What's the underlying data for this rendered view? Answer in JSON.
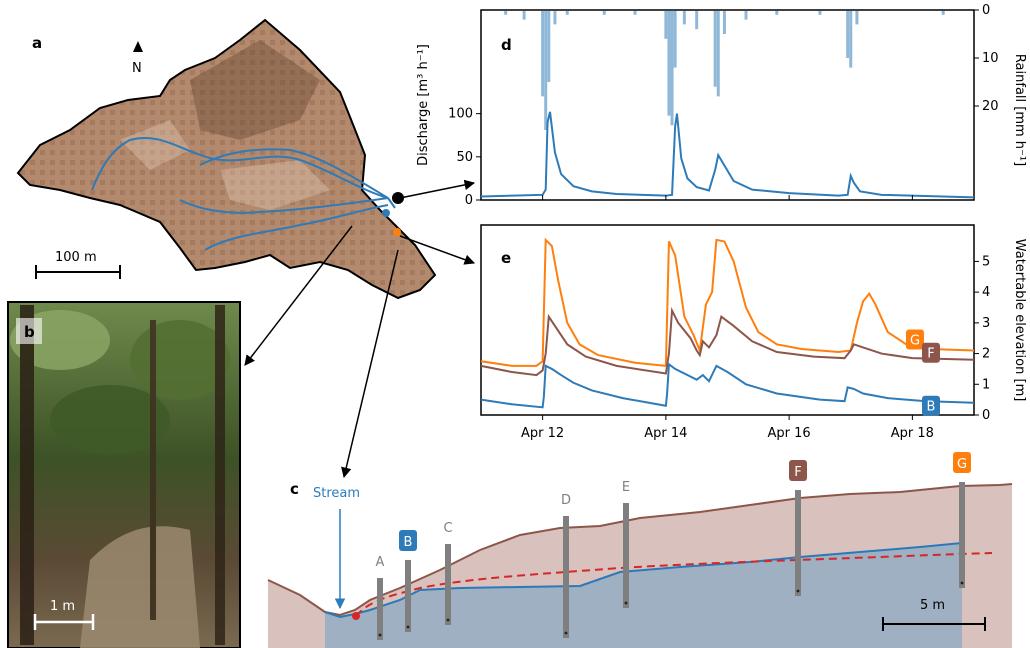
{
  "panels": {
    "a": "a",
    "b": "b",
    "c": "c",
    "d": "d",
    "e": "e"
  },
  "map": {
    "north_label": "N",
    "scale_label": "100 m",
    "colors": {
      "terrain": "#b48a6e",
      "stream": "#2e7bb8",
      "outline": "#000000"
    }
  },
  "photo": {
    "scale_label": "1 m"
  },
  "cross_section": {
    "stream_label": "Stream",
    "scale_label": "5 m",
    "well_labels": [
      "A",
      "B",
      "C",
      "D",
      "E",
      "F",
      "G"
    ],
    "colors": {
      "soil": "#d9c2bd",
      "water": "#9fb0c2",
      "water_line": "#2a79b8",
      "dashed": "#d62728",
      "surface": "#8c564b",
      "well": "#7f7f7f"
    }
  },
  "chart_data": [
    {
      "type": "line",
      "id": "d",
      "ylabel": "Discharge  [m³ h⁻¹]",
      "y2label": "Rainfall  [mm h⁻¹]",
      "xlim": [
        11.0,
        19.0
      ],
      "ylim": [
        0,
        220
      ],
      "y_ticks": [
        0,
        50,
        100
      ],
      "y2_ticks": [
        0,
        10,
        20
      ],
      "y2lim_reversed": [
        0,
        25
      ],
      "series": [
        {
          "color": "#2e7bb8",
          "points": [
            [
              11.0,
              4
            ],
            [
              12.0,
              6
            ],
            [
              12.05,
              12
            ],
            [
              12.08,
              90
            ],
            [
              12.12,
              102
            ],
            [
              12.2,
              55
            ],
            [
              12.3,
              30
            ],
            [
              12.5,
              16
            ],
            [
              12.8,
              10
            ],
            [
              13.2,
              7
            ],
            [
              14.0,
              5
            ],
            [
              14.1,
              6
            ],
            [
              14.15,
              85
            ],
            [
              14.18,
              100
            ],
            [
              14.25,
              48
            ],
            [
              14.35,
              25
            ],
            [
              14.5,
              15
            ],
            [
              14.7,
              11
            ],
            [
              14.8,
              35
            ],
            [
              14.85,
              52
            ],
            [
              14.95,
              40
            ],
            [
              15.1,
              22
            ],
            [
              15.4,
              12
            ],
            [
              16.0,
              8
            ],
            [
              16.8,
              5
            ],
            [
              16.95,
              6
            ],
            [
              17.0,
              28
            ],
            [
              17.05,
              20
            ],
            [
              17.15,
              10
            ],
            [
              17.5,
              6
            ],
            [
              19.0,
              3
            ]
          ]
        },
        {
          "color": "#8fb8d8",
          "name_hidden": "rainfall",
          "points": [
            [
              11.4,
              1
            ],
            [
              11.7,
              2
            ],
            [
              12.0,
              18
            ],
            [
              12.05,
              25
            ],
            [
              12.1,
              15
            ],
            [
              12.2,
              3
            ],
            [
              12.4,
              1
            ],
            [
              13.0,
              1
            ],
            [
              13.5,
              1
            ],
            [
              14.0,
              6
            ],
            [
              14.05,
              22
            ],
            [
              14.1,
              24
            ],
            [
              14.15,
              12
            ],
            [
              14.3,
              3
            ],
            [
              14.5,
              4
            ],
            [
              14.8,
              16
            ],
            [
              14.85,
              18
            ],
            [
              14.95,
              5
            ],
            [
              15.3,
              2
            ],
            [
              15.8,
              1
            ],
            [
              16.5,
              1
            ],
            [
              16.95,
              10
            ],
            [
              17.0,
              12
            ],
            [
              17.1,
              3
            ],
            [
              18.5,
              1
            ]
          ]
        }
      ]
    },
    {
      "type": "line",
      "id": "e",
      "ylabel": "Watertable elevation  [m]",
      "x_tick_labels": [
        "Apr 12",
        "Apr 14",
        "Apr 16",
        "Apr 18"
      ],
      "x_ticks": [
        12,
        14,
        16,
        18
      ],
      "xlim": [
        11.0,
        19.0
      ],
      "ylim": [
        0,
        6
      ],
      "y_ticks": [
        0,
        1,
        2,
        3,
        4,
        5
      ],
      "series": [
        {
          "name": "G",
          "color": "#ff7f0e",
          "points": [
            [
              11.0,
              1.75
            ],
            [
              11.5,
              1.6
            ],
            [
              11.9,
              1.6
            ],
            [
              12.0,
              1.75
            ],
            [
              12.05,
              5.7
            ],
            [
              12.15,
              5.5
            ],
            [
              12.25,
              4.4
            ],
            [
              12.4,
              3.0
            ],
            [
              12.6,
              2.3
            ],
            [
              12.9,
              1.95
            ],
            [
              13.5,
              1.7
            ],
            [
              14.0,
              1.6
            ],
            [
              14.05,
              5.65
            ],
            [
              14.15,
              5.2
            ],
            [
              14.3,
              3.2
            ],
            [
              14.45,
              2.6
            ],
            [
              14.55,
              2.1
            ],
            [
              14.65,
              3.6
            ],
            [
              14.75,
              4.0
            ],
            [
              14.82,
              5.7
            ],
            [
              14.95,
              5.65
            ],
            [
              15.1,
              5.0
            ],
            [
              15.3,
              3.5
            ],
            [
              15.5,
              2.7
            ],
            [
              15.8,
              2.3
            ],
            [
              16.2,
              2.15
            ],
            [
              16.8,
              2.05
            ],
            [
              17.0,
              2.1
            ],
            [
              17.1,
              3.0
            ],
            [
              17.2,
              3.7
            ],
            [
              17.3,
              3.95
            ],
            [
              17.4,
              3.6
            ],
            [
              17.6,
              2.7
            ],
            [
              17.9,
              2.3
            ],
            [
              18.3,
              2.15
            ],
            [
              19.0,
              2.1
            ]
          ]
        },
        {
          "name": "F",
          "color": "#8c564b",
          "points": [
            [
              11.0,
              1.6
            ],
            [
              11.5,
              1.4
            ],
            [
              11.9,
              1.3
            ],
            [
              12.0,
              1.45
            ],
            [
              12.05,
              2.0
            ],
            [
              12.1,
              3.2
            ],
            [
              12.2,
              2.9
            ],
            [
              12.4,
              2.3
            ],
            [
              12.7,
              1.9
            ],
            [
              13.2,
              1.6
            ],
            [
              14.0,
              1.35
            ],
            [
              14.05,
              2.0
            ],
            [
              14.1,
              3.4
            ],
            [
              14.2,
              3.0
            ],
            [
              14.4,
              2.5
            ],
            [
              14.5,
              2.1
            ],
            [
              14.55,
              1.95
            ],
            [
              14.6,
              2.4
            ],
            [
              14.7,
              2.2
            ],
            [
              14.82,
              2.6
            ],
            [
              14.9,
              3.2
            ],
            [
              15.1,
              2.9
            ],
            [
              15.4,
              2.4
            ],
            [
              15.8,
              2.05
            ],
            [
              16.4,
              1.9
            ],
            [
              16.9,
              1.85
            ],
            [
              17.0,
              2.1
            ],
            [
              17.05,
              2.3
            ],
            [
              17.2,
              2.2
            ],
            [
              17.5,
              2.0
            ],
            [
              18.0,
              1.85
            ],
            [
              19.0,
              1.8
            ]
          ]
        },
        {
          "name": "B",
          "color": "#2e7bb8",
          "points": [
            [
              11.0,
              0.5
            ],
            [
              11.5,
              0.35
            ],
            [
              12.0,
              0.25
            ],
            [
              12.02,
              0.6
            ],
            [
              12.05,
              1.6
            ],
            [
              12.15,
              1.5
            ],
            [
              12.3,
              1.3
            ],
            [
              12.5,
              1.05
            ],
            [
              12.8,
              0.8
            ],
            [
              13.3,
              0.55
            ],
            [
              14.0,
              0.3
            ],
            [
              14.02,
              0.7
            ],
            [
              14.05,
              1.65
            ],
            [
              14.15,
              1.5
            ],
            [
              14.3,
              1.35
            ],
            [
              14.5,
              1.15
            ],
            [
              14.6,
              1.3
            ],
            [
              14.7,
              1.1
            ],
            [
              14.82,
              1.6
            ],
            [
              15.0,
              1.4
            ],
            [
              15.3,
              1.0
            ],
            [
              15.8,
              0.7
            ],
            [
              16.5,
              0.5
            ],
            [
              16.9,
              0.45
            ],
            [
              16.95,
              0.9
            ],
            [
              17.05,
              0.85
            ],
            [
              17.2,
              0.7
            ],
            [
              17.6,
              0.55
            ],
            [
              18.2,
              0.45
            ],
            [
              19.0,
              0.4
            ]
          ]
        }
      ]
    }
  ]
}
